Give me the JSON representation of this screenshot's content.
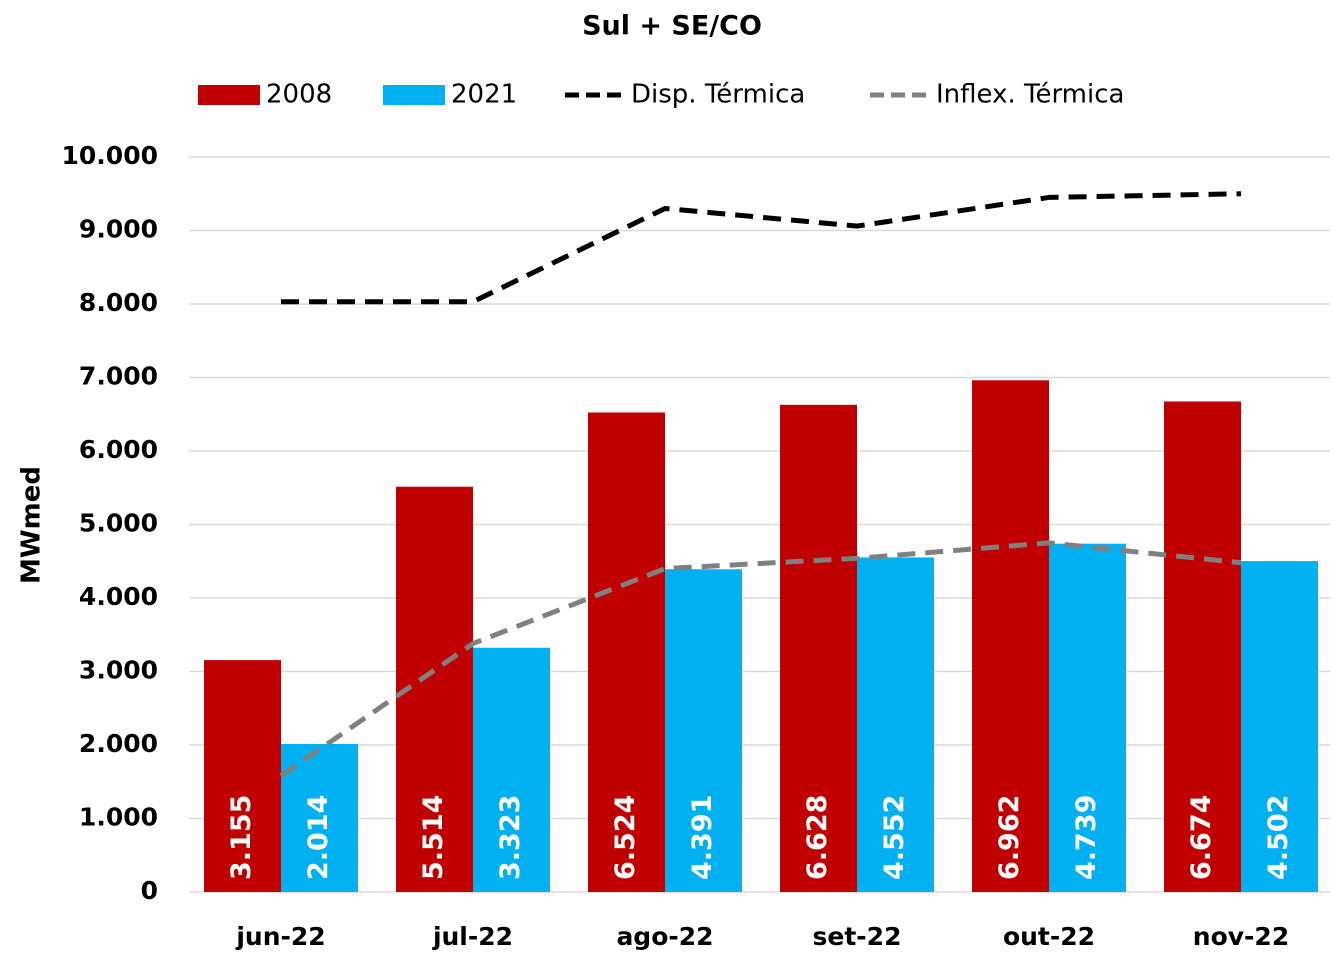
{
  "chart_data": {
    "type": "bar",
    "title": "Sul + SE/CO",
    "y_label": "MWmed",
    "categories": [
      "jun-22",
      "jul-22",
      "ago-22",
      "set-22",
      "out-22",
      "nov-22"
    ],
    "series": [
      {
        "name": "2008",
        "type": "bar",
        "color": "#c00000",
        "values": [
          3155,
          5514,
          6524,
          6628,
          6962,
          6674
        ],
        "value_labels": [
          "3.155",
          "5.514",
          "6.524",
          "6.628",
          "6.962",
          "6.674"
        ]
      },
      {
        "name": "2021",
        "type": "bar",
        "color": "#00b0f0",
        "values": [
          2014,
          3323,
          4391,
          4552,
          4739,
          4502
        ],
        "value_labels": [
          "2.014",
          "3.323",
          "4.391",
          "4.552",
          "4.739",
          "4.502"
        ]
      },
      {
        "name": "Disp. Térmica",
        "type": "line",
        "dashed": true,
        "color": "#000000",
        "values": [
          8030,
          8030,
          9300,
          9060,
          9450,
          9500
        ]
      },
      {
        "name": "Inflex. Térmica",
        "type": "line",
        "dashed": true,
        "color": "#808080",
        "values": [
          1580,
          3380,
          4400,
          4540,
          4750,
          4480
        ]
      }
    ],
    "ylim": [
      0,
      10000
    ],
    "yticks": [
      0,
      {
        "value": 1000,
        "label": "1.000"
      },
      {
        "value": 2000,
        "label": "2.000"
      },
      {
        "value": 3000,
        "label": "3.000"
      },
      {
        "value": 4000,
        "label": "4.000"
      },
      {
        "value": 5000,
        "label": "5.000"
      },
      {
        "value": 6000,
        "label": "6.000"
      },
      {
        "value": 7000,
        "label": "7.000"
      },
      {
        "value": 8000,
        "label": "8.000"
      },
      {
        "value": 9000,
        "label": "9.000"
      },
      {
        "value": 10000,
        "label": "10.000"
      }
    ],
    "grid": true,
    "legend": "top"
  }
}
